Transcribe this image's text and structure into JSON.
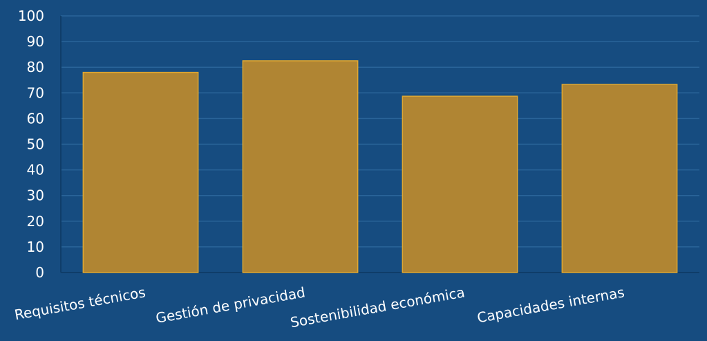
{
  "chart_data": {
    "type": "bar",
    "title": "",
    "xlabel": "",
    "ylabel": "",
    "categories": [
      "Requisitos técnicos",
      "Gestión de privacidad",
      "Sostenibilidad económica",
      "Capacidades internas"
    ],
    "values": [
      78,
      82.5,
      68.7,
      73.3
    ],
    "ylim": [
      0,
      100
    ],
    "yticks": [
      0,
      10,
      20,
      30,
      40,
      50,
      60,
      70,
      80,
      90,
      100
    ],
    "grid": true,
    "legend": "none"
  },
  "colors": {
    "background": "#164c80",
    "bar_fill": "#b08533",
    "bar_stroke": "#e0a832",
    "gridline": "#2a6499",
    "axis": "#0f3d69",
    "text": "#ffffff"
  }
}
